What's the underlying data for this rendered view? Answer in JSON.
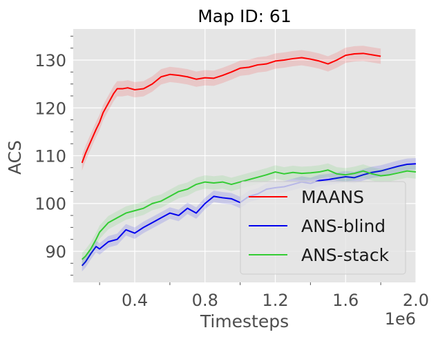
{
  "chart_data": {
    "type": "line",
    "title": "Map ID: 61",
    "xlabel": "Timesteps",
    "ylabel": "ACS",
    "x_offset_label": "1e6",
    "xlim": [
      0.05,
      2.0
    ],
    "ylim": [
      83.5,
      136.5
    ],
    "xticks": [
      0.4,
      0.8,
      1.2,
      1.6,
      2.0
    ],
    "xtick_labels": [
      "0.4",
      "0.8",
      "1.2",
      "1.6",
      "2.0"
    ],
    "yticks": [
      90,
      100,
      110,
      120,
      130
    ],
    "ytick_labels": [
      "90",
      "100",
      "110",
      "120",
      "130"
    ],
    "grid": true,
    "legend_position": "lower-right",
    "series": [
      {
        "name": "MAANS",
        "color": "#ff0000",
        "band": 1.6,
        "x": [
          0.1,
          0.12,
          0.15,
          0.18,
          0.2,
          0.22,
          0.25,
          0.28,
          0.3,
          0.33,
          0.36,
          0.4,
          0.45,
          0.5,
          0.55,
          0.6,
          0.65,
          0.7,
          0.75,
          0.8,
          0.85,
          0.9,
          0.95,
          1.0,
          1.05,
          1.1,
          1.15,
          1.2,
          1.25,
          1.3,
          1.35,
          1.4,
          1.45,
          1.5,
          1.55,
          1.6,
          1.65,
          1.7,
          1.75,
          1.8
        ],
        "values": [
          108.5,
          110.5,
          113.0,
          115.5,
          117.0,
          119.0,
          121.0,
          123.0,
          124.0,
          124.0,
          124.2,
          123.8,
          124.0,
          125.0,
          126.5,
          127.0,
          126.8,
          126.5,
          126.0,
          126.3,
          126.2,
          126.8,
          127.5,
          128.3,
          128.5,
          129.0,
          129.2,
          129.8,
          130.0,
          130.3,
          130.5,
          130.2,
          129.8,
          129.2,
          130.0,
          131.0,
          131.3,
          131.4,
          131.1,
          130.8
        ]
      },
      {
        "name": "ANS-blind",
        "color": "#0000ee",
        "band": 1.2,
        "x": [
          0.1,
          0.12,
          0.15,
          0.18,
          0.2,
          0.25,
          0.3,
          0.35,
          0.4,
          0.45,
          0.5,
          0.55,
          0.6,
          0.65,
          0.7,
          0.75,
          0.8,
          0.85,
          0.9,
          0.95,
          1.0,
          1.05,
          1.1,
          1.15,
          1.2,
          1.25,
          1.3,
          1.35,
          1.4,
          1.45,
          1.5,
          1.55,
          1.6,
          1.65,
          1.7,
          1.75,
          1.8,
          1.85,
          1.9,
          1.95,
          2.0
        ],
        "values": [
          87.0,
          87.8,
          89.5,
          91.0,
          90.5,
          92.0,
          92.5,
          94.5,
          93.8,
          95.0,
          96.0,
          97.0,
          98.0,
          97.5,
          99.0,
          98.0,
          100.0,
          101.5,
          101.2,
          101.0,
          100.2,
          101.5,
          102.0,
          103.0,
          103.3,
          103.5,
          104.0,
          104.5,
          104.2,
          104.8,
          105.0,
          105.3,
          105.6,
          105.4,
          106.0,
          106.5,
          106.8,
          107.3,
          107.8,
          108.2,
          108.3
        ]
      },
      {
        "name": "ANS-stack",
        "color": "#33cc33",
        "band": 1.4,
        "x": [
          0.1,
          0.12,
          0.15,
          0.18,
          0.2,
          0.25,
          0.3,
          0.35,
          0.4,
          0.45,
          0.5,
          0.55,
          0.6,
          0.65,
          0.7,
          0.75,
          0.8,
          0.85,
          0.9,
          0.95,
          1.0,
          1.05,
          1.1,
          1.15,
          1.2,
          1.25,
          1.3,
          1.35,
          1.4,
          1.45,
          1.5,
          1.55,
          1.6,
          1.65,
          1.7,
          1.75,
          1.8,
          1.85,
          1.9,
          1.95,
          2.0
        ],
        "values": [
          88.3,
          89.0,
          90.5,
          92.5,
          94.0,
          96.0,
          97.0,
          98.0,
          98.5,
          99.0,
          100.0,
          100.5,
          101.5,
          102.5,
          103.0,
          104.0,
          104.5,
          104.3,
          104.5,
          104.0,
          104.5,
          105.0,
          105.5,
          106.0,
          106.6,
          106.2,
          106.5,
          106.3,
          106.4,
          106.6,
          107.0,
          106.2,
          106.0,
          106.3,
          106.8,
          106.2,
          105.8,
          106.0,
          106.4,
          106.8,
          106.6
        ]
      }
    ]
  }
}
